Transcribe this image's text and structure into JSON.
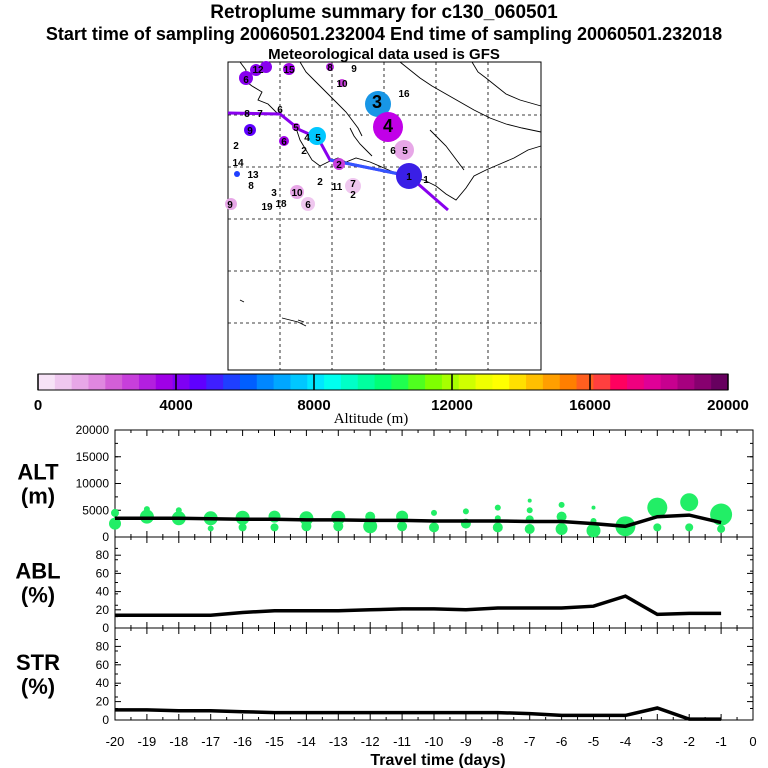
{
  "header": {
    "title": "Retroplume summary for c130_060501",
    "sampling_line": "Start time of sampling 20060501.232004     End time of sampling 20060501.232018",
    "met_line": "Meteorological data used is GFS"
  },
  "colorbar": {
    "ticks": [
      "0",
      "4000",
      "8000",
      "12000",
      "16000",
      "20000"
    ],
    "label": "Altitude (m)",
    "colors": [
      "#f7e3f7",
      "#efc7ef",
      "#e7a7e7",
      "#df87df",
      "#d35fd7",
      "#c73fdb",
      "#b31fdf",
      "#9f00e7",
      "#7f00f3",
      "#5f00ff",
      "#3f1fff",
      "#1f3fff",
      "#005fff",
      "#0087ff",
      "#00a7ff",
      "#00c7ff",
      "#00e7ff",
      "#00ffef",
      "#00ffc7",
      "#00ff9f",
      "#00ff77",
      "#1fff4f",
      "#4fff1f",
      "#7fff00",
      "#a7ff00",
      "#cfff00",
      "#efff00",
      "#ffff00",
      "#ffdf00",
      "#ffbf00",
      "#ff9f00",
      "#ff7f00",
      "#ff5f1f",
      "#ff3f3f",
      "#ff005f",
      "#ef007f",
      "#df0097",
      "#c7008f",
      "#a7007f",
      "#87006f",
      "#67005f"
    ]
  },
  "map": {
    "labels": [
      {
        "text": "6",
        "x": 246,
        "y": 79
      },
      {
        "text": "12",
        "x": 258,
        "y": 69
      },
      {
        "text": "15",
        "x": 289,
        "y": 69
      },
      {
        "text": "8",
        "x": 330,
        "y": 67
      },
      {
        "text": "9",
        "x": 354,
        "y": 68
      },
      {
        "text": "10",
        "x": 342,
        "y": 83
      },
      {
        "text": "3",
        "x": 377,
        "y": 104
      },
      {
        "text": "16",
        "x": 404,
        "y": 93
      },
      {
        "text": "8",
        "x": 247,
        "y": 113
      },
      {
        "text": "7",
        "x": 260,
        "y": 113
      },
      {
        "text": "6",
        "x": 280,
        "y": 109
      },
      {
        "text": "9",
        "x": 250,
        "y": 130
      },
      {
        "text": "5",
        "x": 296,
        "y": 127
      },
      {
        "text": "4",
        "x": 388,
        "y": 128
      },
      {
        "text": "2",
        "x": 236,
        "y": 145
      },
      {
        "text": "6",
        "x": 284,
        "y": 141
      },
      {
        "text": "4",
        "x": 307,
        "y": 137
      },
      {
        "text": "5",
        "x": 318,
        "y": 137
      },
      {
        "text": "2",
        "x": 304,
        "y": 150
      },
      {
        "text": "6",
        "x": 393,
        "y": 150
      },
      {
        "text": "5",
        "x": 405,
        "y": 150
      },
      {
        "text": "14",
        "x": 238,
        "y": 162
      },
      {
        "text": "2",
        "x": 339,
        "y": 164
      },
      {
        "text": "13",
        "x": 253,
        "y": 174
      },
      {
        "text": "1",
        "x": 409,
        "y": 176
      },
      {
        "text": "1",
        "x": 426,
        "y": 179
      },
      {
        "text": "8",
        "x": 251,
        "y": 185
      },
      {
        "text": "2",
        "x": 320,
        "y": 181
      },
      {
        "text": "11",
        "x": 337,
        "y": 186
      },
      {
        "text": "7",
        "x": 353,
        "y": 183
      },
      {
        "text": "2",
        "x": 353,
        "y": 194
      },
      {
        "text": "3",
        "x": 274,
        "y": 192
      },
      {
        "text": "10",
        "x": 297,
        "y": 192
      },
      {
        "text": "9",
        "x": 230,
        "y": 204
      },
      {
        "text": "19",
        "x": 267,
        "y": 206
      },
      {
        "text": "18",
        "x": 281,
        "y": 203
      },
      {
        "text": "6",
        "x": 308,
        "y": 204
      }
    ]
  },
  "chart_data": [
    {
      "type": "scatter",
      "title": "ALT (m)",
      "ylabel_lines": [
        "ALT",
        "(m)"
      ],
      "x_ticks": [
        "-20",
        "-19",
        "-18",
        "-17",
        "-16",
        "-15",
        "-14",
        "-13",
        "-12",
        "-11",
        "-10",
        "-9",
        "-8",
        "-7",
        "-6",
        "-5",
        "-4",
        "-3",
        "-2",
        "-1",
        "0"
      ],
      "y_ticks": [
        "0",
        "5000",
        "10000",
        "15000",
        "20000"
      ],
      "xlim": [
        -20,
        0
      ],
      "ylim": [
        0,
        20000
      ],
      "mean_line": {
        "x": [
          -20,
          -19,
          -18,
          -17,
          -16,
          -15,
          -14,
          -13,
          -12,
          -11,
          -10,
          -9,
          -8,
          -7,
          -6,
          -5,
          -4,
          -3,
          -2,
          -1
        ],
        "y": [
          3500,
          3500,
          3500,
          3400,
          3300,
          3300,
          3200,
          3200,
          3100,
          3100,
          3000,
          3000,
          3000,
          2900,
          2900,
          2500,
          2000,
          3800,
          4100,
          2700
        ]
      },
      "points": [
        {
          "x": -20,
          "y": 2500,
          "s": 6
        },
        {
          "x": -20,
          "y": 4500,
          "s": 4
        },
        {
          "x": -19,
          "y": 3800,
          "s": 7
        },
        {
          "x": -19,
          "y": 5200,
          "s": 3
        },
        {
          "x": -18,
          "y": 3500,
          "s": 7
        },
        {
          "x": -18,
          "y": 5000,
          "s": 3
        },
        {
          "x": -17,
          "y": 1600,
          "s": 3
        },
        {
          "x": -17,
          "y": 3500,
          "s": 7
        },
        {
          "x": -16,
          "y": 1800,
          "s": 4
        },
        {
          "x": -16,
          "y": 3600,
          "s": 7
        },
        {
          "x": -15,
          "y": 1800,
          "s": 4
        },
        {
          "x": -15,
          "y": 3800,
          "s": 6
        },
        {
          "x": -14,
          "y": 2000,
          "s": 5
        },
        {
          "x": -14,
          "y": 3500,
          "s": 7
        },
        {
          "x": -13,
          "y": 2000,
          "s": 5
        },
        {
          "x": -13,
          "y": 3600,
          "s": 7
        },
        {
          "x": -12,
          "y": 2000,
          "s": 7
        },
        {
          "x": -12,
          "y": 3800,
          "s": 5
        },
        {
          "x": -11,
          "y": 2000,
          "s": 5
        },
        {
          "x": -11,
          "y": 3800,
          "s": 6
        },
        {
          "x": -10,
          "y": 1800,
          "s": 5
        },
        {
          "x": -10,
          "y": 4500,
          "s": 3
        },
        {
          "x": -9,
          "y": 2500,
          "s": 5
        },
        {
          "x": -9,
          "y": 4800,
          "s": 3
        },
        {
          "x": -8,
          "y": 1800,
          "s": 5
        },
        {
          "x": -8,
          "y": 3500,
          "s": 3
        },
        {
          "x": -8,
          "y": 5500,
          "s": 3
        },
        {
          "x": -7,
          "y": 1500,
          "s": 5
        },
        {
          "x": -7,
          "y": 3300,
          "s": 4
        },
        {
          "x": -7,
          "y": 5000,
          "s": 3
        },
        {
          "x": -7,
          "y": 6800,
          "s": 2
        },
        {
          "x": -6,
          "y": 1500,
          "s": 6
        },
        {
          "x": -6,
          "y": 3800,
          "s": 5
        },
        {
          "x": -6,
          "y": 6000,
          "s": 3
        },
        {
          "x": -5,
          "y": 1200,
          "s": 7
        },
        {
          "x": -5,
          "y": 3000,
          "s": 3
        },
        {
          "x": -5,
          "y": 5500,
          "s": 2
        },
        {
          "x": -4,
          "y": 2000,
          "s": 10
        },
        {
          "x": -3,
          "y": 1800,
          "s": 4
        },
        {
          "x": -3,
          "y": 5500,
          "s": 10
        },
        {
          "x": -2,
          "y": 1800,
          "s": 4
        },
        {
          "x": -2,
          "y": 6500,
          "s": 9
        },
        {
          "x": -1,
          "y": 1500,
          "s": 4
        },
        {
          "x": -1,
          "y": 4200,
          "s": 11
        }
      ]
    },
    {
      "type": "line",
      "title": "ABL (%)",
      "ylabel_lines": [
        "ABL",
        "(%)"
      ],
      "y_ticks": [
        "0",
        "20",
        "40",
        "60",
        "80"
      ],
      "ylim": [
        0,
        100
      ],
      "x": [
        -20,
        -19,
        -18,
        -17,
        -16,
        -15,
        -14,
        -13,
        -12,
        -11,
        -10,
        -9,
        -8,
        -7,
        -6,
        -5,
        -4,
        -3,
        -2,
        -1
      ],
      "y": [
        14,
        14,
        14,
        14,
        17,
        19,
        19,
        19,
        20,
        21,
        21,
        20,
        22,
        22,
        22,
        24,
        35,
        15,
        16,
        16
      ]
    },
    {
      "type": "line",
      "title": "STR (%)",
      "ylabel_lines": [
        "STR",
        "(%)"
      ],
      "y_ticks": [
        "0",
        "20",
        "40",
        "60",
        "80"
      ],
      "ylim": [
        0,
        100
      ],
      "xlabel": "Travel time (days)",
      "x": [
        -20,
        -19,
        -18,
        -17,
        -16,
        -15,
        -14,
        -13,
        -12,
        -11,
        -10,
        -9,
        -8,
        -7,
        -6,
        -5,
        -4,
        -3,
        -2,
        -1
      ],
      "y": [
        11,
        11,
        10,
        10,
        9,
        8,
        8,
        8,
        8,
        8,
        8,
        8,
        8,
        7,
        5,
        5,
        5,
        13,
        1,
        1
      ]
    }
  ]
}
